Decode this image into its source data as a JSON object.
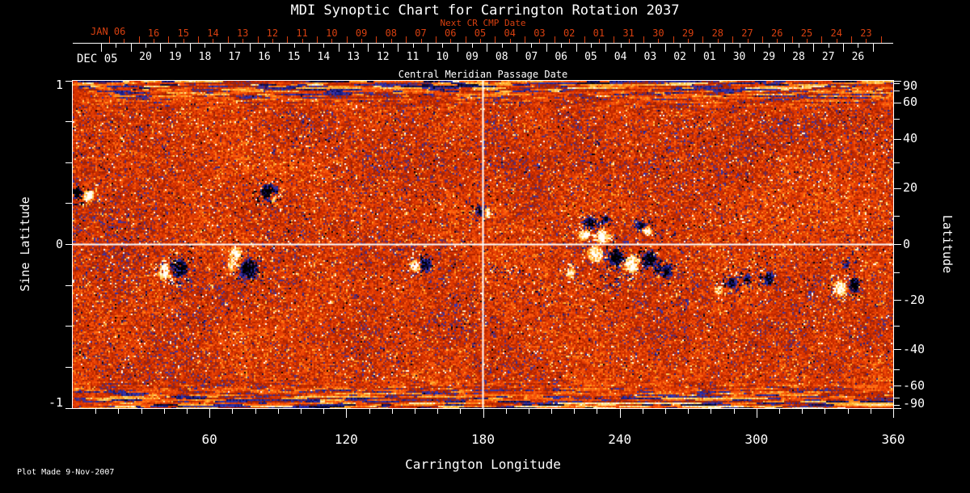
{
  "title": "MDI Synoptic Chart for Carrington Rotation 2037",
  "footer": "Plot Made  9-Nov-2007",
  "colors": {
    "background": "#000000",
    "axis": "#ffffff",
    "text": "#ffffff",
    "red_accent": "#d84010"
  },
  "top_axis_red": {
    "axis_label": "Next CR CMP Date",
    "month_label": "JAN 06",
    "day_labels": [
      "16",
      "15",
      "14",
      "13",
      "12",
      "11",
      "10",
      "09",
      "08",
      "07",
      "06",
      "05",
      "04",
      "03",
      "02",
      "01",
      "31",
      "30",
      "29",
      "28",
      "27",
      "26",
      "25",
      "24",
      "23"
    ]
  },
  "top_axis_white": {
    "axis_label": "Central Meridian Passage Date",
    "month_label": "DEC 05",
    "day_labels": [
      "20",
      "19",
      "18",
      "17",
      "16",
      "15",
      "14",
      "13",
      "12",
      "11",
      "10",
      "09",
      "08",
      "07",
      "06",
      "05",
      "04",
      "03",
      "02",
      "01",
      "30",
      "29",
      "28",
      "27",
      "26"
    ]
  },
  "left_axis": {
    "title": "Sine Latitude",
    "labeled_ticks": [
      {
        "value": 1,
        "label": "1"
      },
      {
        "value": 0,
        "label": "0"
      },
      {
        "value": -1,
        "label": "-1"
      }
    ],
    "minor_step": 0.25
  },
  "right_axis": {
    "title": "Latitude",
    "labeled_ticks": [
      {
        "deg": 90,
        "label": "90"
      },
      {
        "deg": 60,
        "label": "60"
      },
      {
        "deg": 40,
        "label": "40"
      },
      {
        "deg": 20,
        "label": "20"
      },
      {
        "deg": 0,
        "label": "0"
      },
      {
        "deg": -20,
        "label": "-20"
      },
      {
        "deg": -40,
        "label": "-40"
      },
      {
        "deg": -60,
        "label": "-60"
      },
      {
        "deg": -90,
        "label": "-90"
      }
    ],
    "minor_step_deg": 10
  },
  "bottom_axis": {
    "title": "Carrington Longitude",
    "labeled_ticks": [
      {
        "deg": 60,
        "label": "60"
      },
      {
        "deg": 120,
        "label": "120"
      },
      {
        "deg": 180,
        "label": "180"
      },
      {
        "deg": 240,
        "label": "240"
      },
      {
        "deg": 300,
        "label": "300"
      },
      {
        "deg": 360,
        "label": "360"
      }
    ],
    "minor_step_deg": 10
  },
  "chart_data": {
    "type": "heatmap",
    "title": "MDI Synoptic Chart for Carrington Rotation 2037",
    "description": "Full-sun synoptic magnetogram for Carrington rotation 2037; orange-red background noise, white = positive magnetic field, dark blue/black = negative field, horizontal streaks near both poles.",
    "x_axis": {
      "label": "Carrington Longitude",
      "range_deg": [
        0,
        360
      ],
      "ticks": [
        60,
        120,
        180,
        240,
        300,
        360
      ]
    },
    "y_axis": {
      "label_left": "Sine Latitude",
      "range_sine": [
        -1,
        1
      ],
      "ticks_sine": [
        1,
        0,
        -1
      ],
      "label_right": "Latitude",
      "ticks_latitude_deg": [
        90,
        60,
        40,
        20,
        0,
        -20,
        -40,
        -60,
        -90
      ]
    },
    "date_axis": {
      "next_cr_label": "Next CR CMP Date",
      "cmp_label": "Central Meridian Passage Date",
      "jan_2006_days": [
        "16",
        "15",
        "14",
        "13",
        "12",
        "11",
        "10",
        "09",
        "08",
        "07",
        "06",
        "05",
        "04",
        "03",
        "02",
        "01",
        "31",
        "30",
        "29",
        "28",
        "27",
        "26",
        "25",
        "24",
        "23"
      ],
      "dec_2005_days": [
        "20",
        "19",
        "18",
        "17",
        "16",
        "15",
        "14",
        "13",
        "12",
        "11",
        "10",
        "09",
        "08",
        "07",
        "06",
        "05",
        "04",
        "03",
        "02",
        "01",
        "30",
        "29",
        "28",
        "27",
        "26"
      ]
    },
    "crosshair": {
      "longitude_deg": 180,
      "latitude_deg": 0
    },
    "palette": {
      "positive": [
        [
          0,
          "#d83200"
        ],
        [
          0.28,
          "#fe5a0c"
        ],
        [
          0.5,
          "#ff9e1e"
        ],
        [
          0.72,
          "#ffd766"
        ],
        [
          0.88,
          "#fff3c8"
        ],
        [
          1,
          "#ffffff"
        ]
      ],
      "negative": [
        [
          0,
          "#d83200"
        ],
        [
          0.26,
          "#a02000"
        ],
        [
          0.48,
          "#3038bc"
        ],
        [
          0.72,
          "#12126a"
        ],
        [
          1,
          "#000000"
        ]
      ]
    },
    "noise_seed": 1337,
    "polar_streaks": {
      "sine_lat_onset": 0.8,
      "strength": 0.78
    },
    "active_regions": [
      {
        "lon": 2,
        "slat": 0.315,
        "rlon": 2.5,
        "rslat": 0.04,
        "pol": -1,
        "str": 1.3
      },
      {
        "lon": 6.5,
        "slat": 0.3,
        "rlon": 2.8,
        "rslat": 0.038,
        "pol": 1,
        "str": 1.35
      },
      {
        "lon": 86,
        "slat": 0.325,
        "rlon": 4.3,
        "rslat": 0.052,
        "pol": -1,
        "str": 1.25
      },
      {
        "lon": 88,
        "slat": 0.292,
        "rlon": 2.1,
        "rslat": 0.03,
        "pol": 1,
        "str": 1.4
      },
      {
        "lon": 40.5,
        "slat": -0.16,
        "rlon": 3.2,
        "rslat": 0.05,
        "pol": 1,
        "str": 1.35
      },
      {
        "lon": 46,
        "slat": -0.145,
        "rlon": 4.4,
        "rslat": 0.055,
        "pol": -1,
        "str": 1.3
      },
      {
        "lon": 71,
        "slat": -0.055,
        "rlon": 2.4,
        "rslat": 0.05,
        "pol": 1,
        "str": 1.1
      },
      {
        "lon": 69.5,
        "slat": -0.125,
        "rlon": 2,
        "rslat": 0.04,
        "pol": 1,
        "str": 1.0
      },
      {
        "lon": 77,
        "slat": -0.145,
        "rlon": 4.2,
        "rslat": 0.068,
        "pol": -1,
        "str": 1.3
      },
      {
        "lon": 150,
        "slat": -0.125,
        "rlon": 2.6,
        "rslat": 0.036,
        "pol": 1,
        "str": 1.3
      },
      {
        "lon": 154.5,
        "slat": -0.118,
        "rlon": 2.7,
        "rslat": 0.036,
        "pol": -1,
        "str": 1.2
      },
      {
        "lon": 178.5,
        "slat": 0.21,
        "rlon": 2.5,
        "rslat": 0.04,
        "pol": -1,
        "str": 1.3
      },
      {
        "lon": 181.5,
        "slat": 0.198,
        "rlon": 1.6,
        "rslat": 0.026,
        "pol": 1,
        "str": 1.2
      },
      {
        "lon": 227,
        "slat": 0.135,
        "rlon": 3.8,
        "rslat": 0.036,
        "pol": -1,
        "str": 1.2
      },
      {
        "lon": 233.5,
        "slat": 0.158,
        "rlon": 2,
        "rslat": 0.026,
        "pol": -1,
        "str": 1.1
      },
      {
        "lon": 224,
        "slat": 0.062,
        "rlon": 3,
        "rslat": 0.04,
        "pol": 1,
        "str": 1.3
      },
      {
        "lon": 232,
        "slat": 0.05,
        "rlon": 3.4,
        "rslat": 0.046,
        "pol": 1,
        "str": 1.35
      },
      {
        "lon": 249,
        "slat": 0.122,
        "rlon": 2.4,
        "rslat": 0.03,
        "pol": -1,
        "str": 1.1
      },
      {
        "lon": 252,
        "slat": 0.085,
        "rlon": 2.2,
        "rslat": 0.03,
        "pol": 1,
        "str": 1.2
      },
      {
        "lon": 229,
        "slat": -0.055,
        "rlon": 3.7,
        "rslat": 0.055,
        "pol": 1,
        "str": 1.4
      },
      {
        "lon": 238,
        "slat": -0.075,
        "rlon": 3.4,
        "rslat": 0.05,
        "pol": -1,
        "str": 1.25
      },
      {
        "lon": 245,
        "slat": -0.115,
        "rlon": 3.4,
        "rslat": 0.06,
        "pol": 1,
        "str": 1.4
      },
      {
        "lon": 252.5,
        "slat": -0.09,
        "rlon": 3.4,
        "rslat": 0.05,
        "pol": -1,
        "str": 1.2
      },
      {
        "lon": 256.5,
        "slat": -0.145,
        "rlon": 2,
        "rslat": 0.035,
        "pol": -1,
        "str": 1.0
      },
      {
        "lon": 218,
        "slat": -0.17,
        "rlon": 2.2,
        "rslat": 0.035,
        "pol": 1,
        "str": 1.1
      },
      {
        "lon": 260.5,
        "slat": -0.16,
        "rlon": 2.4,
        "rslat": 0.05,
        "pol": -1,
        "str": 1.0
      },
      {
        "lon": 289,
        "slat": -0.23,
        "rlon": 2.2,
        "rslat": 0.04,
        "pol": -1,
        "str": 1.05
      },
      {
        "lon": 295.5,
        "slat": -0.21,
        "rlon": 1.8,
        "rslat": 0.035,
        "pol": -1,
        "str": 0.95
      },
      {
        "lon": 305,
        "slat": -0.2,
        "rlon": 2.4,
        "rslat": 0.045,
        "pol": -1,
        "str": 1.1
      },
      {
        "lon": 283,
        "slat": -0.275,
        "rlon": 1.8,
        "rslat": 0.03,
        "pol": 1,
        "str": 0.95
      },
      {
        "lon": 336.5,
        "slat": -0.26,
        "rlon": 3.1,
        "rslat": 0.055,
        "pol": 1,
        "str": 1.4
      },
      {
        "lon": 342.5,
        "slat": -0.245,
        "rlon": 2.5,
        "rslat": 0.045,
        "pol": -1,
        "str": 1.3
      },
      {
        "lon": 339,
        "slat": -0.12,
        "rlon": 1.5,
        "rslat": 0.03,
        "pol": -1,
        "str": 0.8
      }
    ],
    "speckle_clusters": [
      {
        "lon": 190,
        "slat": -0.15,
        "r": 8,
        "density": 0.1
      },
      {
        "lon": 236,
        "slat": -0.21,
        "r": 10,
        "density": 0.13
      },
      {
        "lon": 293,
        "slat": -0.22,
        "r": 12,
        "density": 0.11
      },
      {
        "lon": 305,
        "slat": -0.1,
        "r": 8,
        "density": 0.07
      },
      {
        "lon": 258,
        "slat": 0.1,
        "r": 8,
        "density": 0.07
      },
      {
        "lon": 90,
        "slat": 0,
        "r": 10,
        "density": 0.05
      },
      {
        "lon": 45,
        "slat": -0.25,
        "r": 8,
        "density": 0.07
      },
      {
        "lon": 150,
        "slat": 0.3,
        "r": 10,
        "density": 0.045
      },
      {
        "lon": 345,
        "slat": -0.05,
        "r": 8,
        "density": 0.06
      },
      {
        "lon": 320,
        "slat": 0.15,
        "r": 9,
        "density": 0.05
      },
      {
        "lon": 115,
        "slat": 0.45,
        "r": 12,
        "density": 0.045
      },
      {
        "lon": 205,
        "slat": -0.3,
        "r": 9,
        "density": 0.06
      },
      {
        "lon": 265,
        "slat": -0.3,
        "r": 10,
        "density": 0.07
      }
    ]
  }
}
